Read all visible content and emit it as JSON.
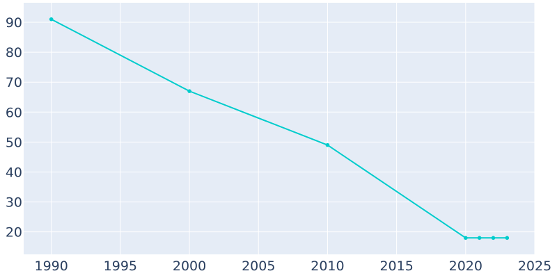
{
  "chart_data": {
    "type": "line",
    "title": "",
    "xlabel": "",
    "ylabel": "",
    "xlim": [
      1988,
      2025
    ],
    "ylim": [
      12.5,
      96.5
    ],
    "x_ticks": [
      1990,
      1995,
      2000,
      2005,
      2010,
      2015,
      2020,
      2025
    ],
    "y_ticks": [
      20,
      30,
      40,
      50,
      60,
      70,
      80,
      90
    ],
    "grid": true,
    "legend": "none",
    "colors": {
      "line": "#00cccc",
      "plot_bg": "#e5ecf6",
      "grid": "#ffffff",
      "text": "#2a3f5f"
    },
    "series": [
      {
        "x": [
          1990,
          2000,
          2010,
          2020,
          2021,
          2022,
          2023
        ],
        "y": [
          91,
          67,
          49,
          18,
          18,
          18,
          18
        ]
      }
    ]
  }
}
